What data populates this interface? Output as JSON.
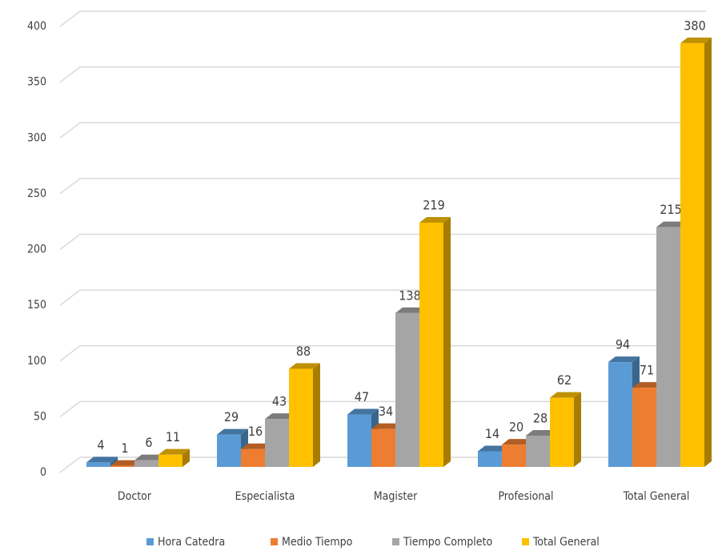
{
  "chart_data": {
    "type": "bar3d",
    "categories": [
      "Doctor",
      "Especialista",
      "Magister",
      "Profesional",
      "Total General"
    ],
    "series": [
      {
        "name": "Hora Catedra",
        "color": "#5b9bd5",
        "values": [
          4,
          29,
          47,
          14,
          94
        ]
      },
      {
        "name": "Medio Tiempo",
        "color": "#ed7d31",
        "values": [
          1,
          16,
          34,
          20,
          71
        ]
      },
      {
        "name": "Tiempo Completo",
        "color": "#a5a5a5",
        "values": [
          6,
          43,
          138,
          28,
          215
        ]
      },
      {
        "name": "Total General",
        "color": "#ffc000",
        "values": [
          11,
          88,
          219,
          62,
          380
        ]
      }
    ],
    "ylim": [
      0,
      400
    ],
    "yticks": [
      0,
      50,
      100,
      150,
      200,
      250,
      300,
      350,
      400
    ],
    "grid": true,
    "legend": "bottom"
  }
}
